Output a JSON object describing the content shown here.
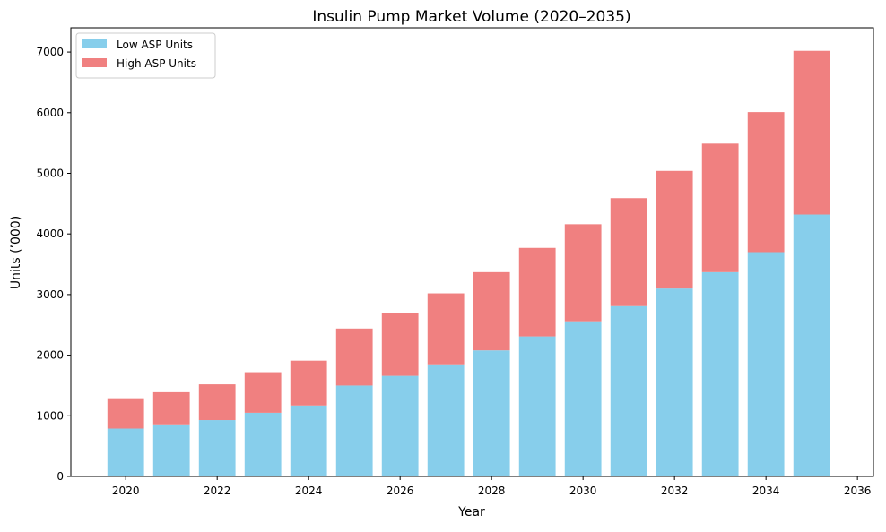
{
  "chart_data": {
    "type": "bar",
    "stacked": true,
    "title": "Insulin Pump Market Volume (2020–2035)",
    "xlabel": "Year",
    "ylabel": "Units (’000)",
    "x": [
      2020,
      2021,
      2022,
      2023,
      2024,
      2025,
      2026,
      2027,
      2028,
      2029,
      2030,
      2031,
      2032,
      2033,
      2034,
      2035
    ],
    "xticks": [
      2020,
      2022,
      2024,
      2026,
      2028,
      2030,
      2032,
      2034,
      2036
    ],
    "yticks": [
      0,
      1000,
      2000,
      3000,
      4000,
      5000,
      6000,
      7000
    ],
    "xlim": [
      2018.8,
      2036.35
    ],
    "ylim": [
      0,
      7400
    ],
    "grid": false,
    "legend_position": "top-left",
    "series": [
      {
        "name": "Low ASP Units",
        "color": "#87CEEB",
        "values": [
          790,
          860,
          930,
          1050,
          1170,
          1500,
          1660,
          1850,
          2080,
          2310,
          2560,
          2810,
          3100,
          3370,
          3700,
          4320
        ]
      },
      {
        "name": "High ASP Units",
        "color": "#F08080",
        "values": [
          500,
          530,
          590,
          670,
          740,
          940,
          1040,
          1170,
          1290,
          1460,
          1600,
          1780,
          1940,
          2120,
          2310,
          2700
        ]
      }
    ]
  }
}
